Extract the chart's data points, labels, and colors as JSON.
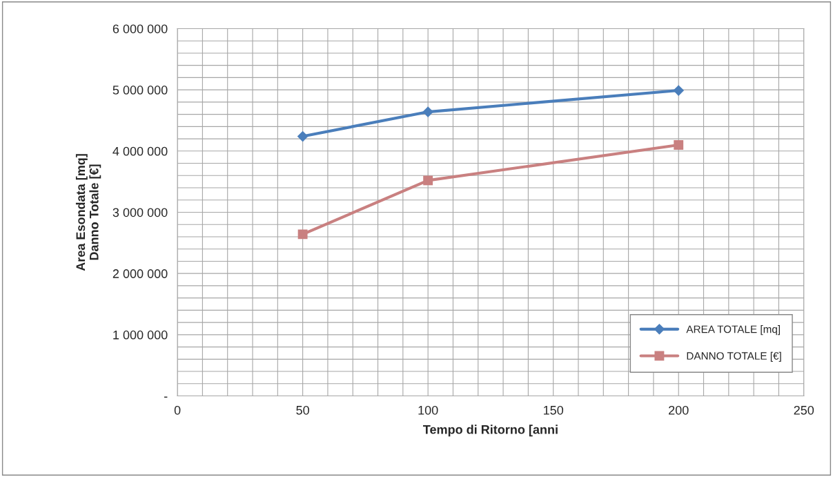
{
  "chart_data": {
    "type": "line",
    "xlabel": "Tempo di Ritorno [anni",
    "ylabel": "Area Esondata [mq]\nDanno Totale [€]",
    "series": [
      {
        "name": "AREA TOTALE [mq]",
        "color": "#4a7ebb",
        "marker": "diamond",
        "x": [
          50,
          100,
          200
        ],
        "values": [
          4240000,
          4640000,
          4990000
        ]
      },
      {
        "name": "DANNO TOTALE [€]",
        "color": "#c98080",
        "marker": "square",
        "x": [
          50,
          100,
          200
        ],
        "values": [
          2640000,
          3520000,
          4100000
        ]
      }
    ],
    "xlim": [
      0,
      250
    ],
    "xticks": [
      0,
      {
        "value": 10,
        "label": null
      },
      {
        "value": 20,
        "label": null
      },
      {
        "value": 30,
        "label": null
      },
      {
        "value": 40,
        "label": null
      },
      50,
      {
        "value": 60,
        "label": null
      },
      {
        "value": 70,
        "label": null
      },
      {
        "value": 80,
        "label": null
      },
      {
        "value": 90,
        "label": null
      },
      100,
      {
        "value": 110,
        "label": null
      },
      {
        "value": 120,
        "label": null
      },
      {
        "value": 130,
        "label": null
      },
      {
        "value": 140,
        "label": null
      },
      150,
      {
        "value": 160,
        "label": null
      },
      {
        "value": 170,
        "label": null
      },
      {
        "value": 180,
        "label": null
      },
      {
        "value": 190,
        "label": null
      },
      200,
      {
        "value": 210,
        "label": null
      },
      {
        "value": 220,
        "label": null
      },
      {
        "value": 230,
        "label": null
      },
      {
        "value": 240,
        "label": null
      },
      250
    ],
    "ylim": [
      0,
      6000000
    ],
    "yticks": [
      {
        "value": 0,
        "label": "-"
      },
      {
        "value": 200000,
        "label": null
      },
      {
        "value": 400000,
        "label": null
      },
      {
        "value": 600000,
        "label": null
      },
      {
        "value": 800000,
        "label": null
      },
      {
        "value": 1000000,
        "label": "1 000 000"
      },
      {
        "value": 1200000,
        "label": null
      },
      {
        "value": 1400000,
        "label": null
      },
      {
        "value": 1600000,
        "label": null
      },
      {
        "value": 1800000,
        "label": null
      },
      {
        "value": 2000000,
        "label": "2 000 000"
      },
      {
        "value": 2200000,
        "label": null
      },
      {
        "value": 2400000,
        "label": null
      },
      {
        "value": 2600000,
        "label": null
      },
      {
        "value": 2800000,
        "label": null
      },
      {
        "value": 3000000,
        "label": "3 000 000"
      },
      {
        "value": 3200000,
        "label": null
      },
      {
        "value": 3400000,
        "label": null
      },
      {
        "value": 3600000,
        "label": null
      },
      {
        "value": 3800000,
        "label": null
      },
      {
        "value": 4000000,
        "label": "4 000 000"
      },
      {
        "value": 4200000,
        "label": null
      },
      {
        "value": 4400000,
        "label": null
      },
      {
        "value": 4600000,
        "label": null
      },
      {
        "value": 4800000,
        "label": null
      },
      {
        "value": 5000000,
        "label": "5 000 000"
      },
      {
        "value": 5200000,
        "label": null
      },
      {
        "value": 5400000,
        "label": null
      },
      {
        "value": 5600000,
        "label": null
      },
      {
        "value": 5800000,
        "label": null
      },
      {
        "value": 6000000,
        "label": "6 000 000"
      }
    ],
    "grid": true,
    "legend": "bottom right",
    "line_style": "solid"
  }
}
